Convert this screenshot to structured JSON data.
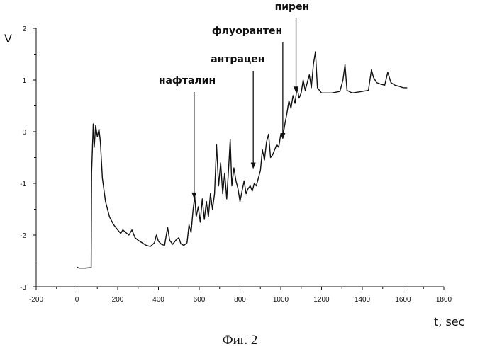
{
  "chart_data": {
    "type": "line",
    "xlabel": "t, sec",
    "ylabel": "V",
    "xlim": [
      -200,
      1800
    ],
    "ylim": [
      -3,
      2
    ],
    "xticks": [
      -200,
      0,
      200,
      400,
      600,
      800,
      1000,
      1200,
      1400,
      1600,
      1800
    ],
    "yticks": [
      -3,
      -2,
      -1,
      0,
      1,
      2
    ],
    "grid": false,
    "series": [
      {
        "points": [
          [
            0,
            -2.62
          ],
          [
            10,
            -2.64
          ],
          [
            40,
            -2.64
          ],
          [
            70,
            -2.63
          ],
          [
            72,
            -0.8
          ],
          [
            80,
            0.15
          ],
          [
            85,
            -0.3
          ],
          [
            92,
            0.12
          ],
          [
            100,
            -0.1
          ],
          [
            108,
            0.05
          ],
          [
            115,
            -0.2
          ],
          [
            125,
            -0.9
          ],
          [
            140,
            -1.35
          ],
          [
            160,
            -1.65
          ],
          [
            180,
            -1.8
          ],
          [
            200,
            -1.9
          ],
          [
            215,
            -1.97
          ],
          [
            225,
            -1.9
          ],
          [
            240,
            -1.95
          ],
          [
            255,
            -2.0
          ],
          [
            270,
            -1.9
          ],
          [
            285,
            -2.05
          ],
          [
            300,
            -2.1
          ],
          [
            320,
            -2.15
          ],
          [
            340,
            -2.2
          ],
          [
            360,
            -2.22
          ],
          [
            380,
            -2.15
          ],
          [
            390,
            -2.0
          ],
          [
            400,
            -2.12
          ],
          [
            415,
            -2.18
          ],
          [
            430,
            -2.2
          ],
          [
            445,
            -1.85
          ],
          [
            455,
            -2.1
          ],
          [
            470,
            -2.18
          ],
          [
            485,
            -2.1
          ],
          [
            500,
            -2.05
          ],
          [
            510,
            -2.17
          ],
          [
            525,
            -2.2
          ],
          [
            540,
            -2.15
          ],
          [
            550,
            -1.8
          ],
          [
            560,
            -1.95
          ],
          [
            570,
            -1.5
          ],
          [
            578,
            -1.25
          ],
          [
            585,
            -1.65
          ],
          [
            595,
            -1.45
          ],
          [
            605,
            -1.75
          ],
          [
            615,
            -1.3
          ],
          [
            625,
            -1.7
          ],
          [
            635,
            -1.35
          ],
          [
            645,
            -1.65
          ],
          [
            655,
            -1.2
          ],
          [
            665,
            -1.5
          ],
          [
            675,
            -1.2
          ],
          [
            685,
            -0.25
          ],
          [
            695,
            -1.05
          ],
          [
            705,
            -0.6
          ],
          [
            715,
            -1.2
          ],
          [
            725,
            -0.8
          ],
          [
            735,
            -1.3
          ],
          [
            745,
            -0.65
          ],
          [
            752,
            -0.15
          ],
          [
            760,
            -1.05
          ],
          [
            770,
            -0.7
          ],
          [
            780,
            -0.95
          ],
          [
            790,
            -1.1
          ],
          [
            800,
            -1.35
          ],
          [
            810,
            -1.15
          ],
          [
            820,
            -0.95
          ],
          [
            830,
            -1.2
          ],
          [
            840,
            -1.1
          ],
          [
            850,
            -1.05
          ],
          [
            860,
            -1.15
          ],
          [
            870,
            -1.0
          ],
          [
            880,
            -1.05
          ],
          [
            890,
            -0.9
          ],
          [
            900,
            -0.75
          ],
          [
            910,
            -0.35
          ],
          [
            920,
            -0.55
          ],
          [
            930,
            -0.2
          ],
          [
            940,
            -0.05
          ],
          [
            950,
            -0.5
          ],
          [
            960,
            -0.45
          ],
          [
            970,
            -0.35
          ],
          [
            980,
            -0.25
          ],
          [
            990,
            -0.3
          ],
          [
            1000,
            -0.05
          ],
          [
            1010,
            -0.1
          ],
          [
            1020,
            0.15
          ],
          [
            1030,
            0.35
          ],
          [
            1040,
            0.6
          ],
          [
            1050,
            0.45
          ],
          [
            1060,
            0.7
          ],
          [
            1070,
            0.55
          ],
          [
            1080,
            0.85
          ],
          [
            1090,
            0.65
          ],
          [
            1100,
            0.75
          ],
          [
            1110,
            1.0
          ],
          [
            1120,
            0.8
          ],
          [
            1130,
            0.95
          ],
          [
            1140,
            1.1
          ],
          [
            1150,
            0.85
          ],
          [
            1160,
            1.3
          ],
          [
            1170,
            1.55
          ],
          [
            1180,
            0.85
          ],
          [
            1200,
            0.75
          ],
          [
            1250,
            0.75
          ],
          [
            1290,
            0.78
          ],
          [
            1305,
            1.0
          ],
          [
            1315,
            1.3
          ],
          [
            1325,
            0.8
          ],
          [
            1350,
            0.75
          ],
          [
            1400,
            0.78
          ],
          [
            1430,
            0.8
          ],
          [
            1445,
            1.2
          ],
          [
            1455,
            1.05
          ],
          [
            1470,
            0.95
          ],
          [
            1490,
            0.92
          ],
          [
            1510,
            0.9
          ],
          [
            1525,
            1.15
          ],
          [
            1540,
            0.95
          ],
          [
            1560,
            0.9
          ],
          [
            1580,
            0.88
          ],
          [
            1600,
            0.85
          ],
          [
            1620,
            0.85
          ]
        ]
      }
    ],
    "annotations": [
      {
        "label": "нафталин",
        "x": 575,
        "y": -1.3
      },
      {
        "label": "антрацен",
        "x": 865,
        "y": -0.72
      },
      {
        "label": "флуорантен",
        "x": 1010,
        "y": -0.15
      },
      {
        "label": "пирен",
        "x": 1075,
        "y": 0.75
      }
    ],
    "caption": "Фиг. 2"
  }
}
